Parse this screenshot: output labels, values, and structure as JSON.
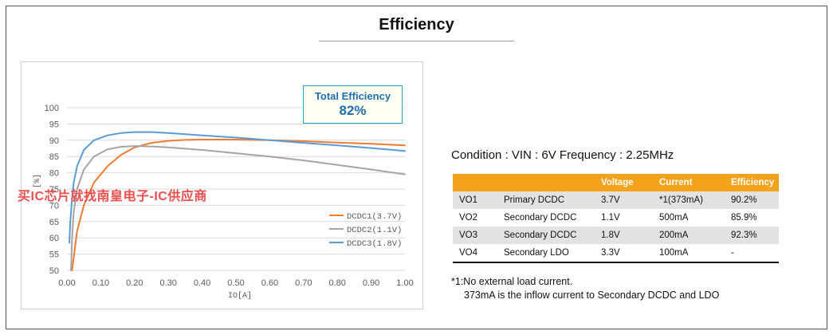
{
  "page": {
    "title": "Efficiency",
    "efficiency_box": {
      "label": "Total Efficiency",
      "value": "82%"
    },
    "watermark": "买IC芯片就找南皇电子-IC供应商",
    "condition": "Condition : VIN : 6V  Frequency : 2.25MHz",
    "table": {
      "headers": [
        "",
        "",
        "Voltage",
        "Current",
        "Efficiency"
      ],
      "rows": [
        [
          "VO1",
          "Primary DCDC",
          "3.7V",
          "*1(373mA)",
          "90.2%"
        ],
        [
          "VO2",
          "Secondary DCDC",
          "1.1V",
          "500mA",
          "85.9%"
        ],
        [
          "VO3",
          "Secondary DCDC",
          "1.8V",
          "200mA",
          "92.3%"
        ],
        [
          "VO4",
          "Secondary LDO",
          "3.3V",
          "100mA",
          "-"
        ]
      ]
    },
    "notes": [
      "*1:No external load current.",
      "373mA is the inflow current to Secondary DCDC and LDO"
    ]
  },
  "chart_data": {
    "type": "line",
    "title": "",
    "xlabel": "IO[A]",
    "ylabel": "[%]",
    "xlim": [
      0.0,
      1.0
    ],
    "ylim": [
      50,
      100
    ],
    "xticks": [
      "0.00",
      "0.10",
      "0.20",
      "0.30",
      "0.40",
      "0.50",
      "0.60",
      "0.70",
      "0.80",
      "0.90",
      "1.00"
    ],
    "yticks": [
      "50",
      "55",
      "60",
      "65",
      "70",
      "75",
      "80",
      "85",
      "90",
      "95",
      "100"
    ],
    "grid": "horizontal",
    "legend_position": "right",
    "series": [
      {
        "name": "DCDC1(3.7V)",
        "color": "#ed7d31",
        "x": [
          0.015,
          0.02,
          0.03,
          0.05,
          0.08,
          0.12,
          0.16,
          0.2,
          0.25,
          0.3,
          0.35,
          0.4,
          0.5,
          0.6,
          0.7,
          0.8,
          0.9,
          1.0
        ],
        "y": [
          50,
          54,
          62,
          70,
          77,
          82,
          85.5,
          87.8,
          89.2,
          89.8,
          90.1,
          90.2,
          90.2,
          90.0,
          89.7,
          89.3,
          88.9,
          88.4
        ]
      },
      {
        "name": "DCDC2(1.1V)",
        "color": "#a5a5a5",
        "x": [
          0.012,
          0.015,
          0.02,
          0.03,
          0.05,
          0.08,
          0.12,
          0.16,
          0.2,
          0.25,
          0.3,
          0.4,
          0.5,
          0.6,
          0.7,
          0.8,
          0.9,
          1.0
        ],
        "y": [
          50,
          60,
          68,
          75,
          81,
          85,
          87.2,
          88,
          88.2,
          88.1,
          87.8,
          87.0,
          86.0,
          85.0,
          83.8,
          82.4,
          81.0,
          79.5
        ]
      },
      {
        "name": "DCDC3(1.8V)",
        "color": "#5b9bd5",
        "x": [
          0.007,
          0.01,
          0.015,
          0.02,
          0.03,
          0.05,
          0.08,
          0.12,
          0.16,
          0.2,
          0.25,
          0.3,
          0.4,
          0.5,
          0.6,
          0.7,
          0.8,
          0.9,
          1.0
        ],
        "y": [
          58.5,
          65,
          72,
          77,
          82,
          87,
          90,
          91.5,
          92.2,
          92.5,
          92.5,
          92.2,
          91.5,
          90.8,
          90.0,
          89.2,
          88.4,
          87.6,
          86.7
        ]
      }
    ]
  }
}
